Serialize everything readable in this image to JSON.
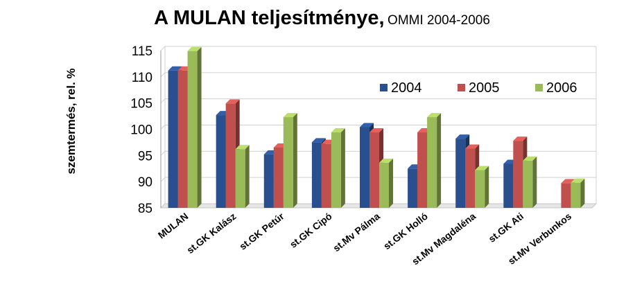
{
  "title": "A MULAN teljesítménye,",
  "subtitle": "OMMI 2004-2006",
  "colors": {
    "2004": "#2a4f8e",
    "2005": "#c0504d",
    "2006": "#9bbb59",
    "grid": "#d0d0d0",
    "floor": "#c8c8c8"
  },
  "chart_data": {
    "type": "bar",
    "title": "A MULAN teljesítménye, OMMI 2004-2006",
    "xlabel": "",
    "ylabel": "szemtermés, rel. %",
    "ylim": [
      85,
      115
    ],
    "yticks": [
      85,
      90,
      95,
      100,
      105,
      110,
      115
    ],
    "grid": true,
    "legend_position": "top-right",
    "categories": [
      "MULAN",
      "st.GK Kalász",
      "st.GK Petúr",
      "st.GK Cipó",
      "st.Mv Pálma",
      "st.GK Holló",
      "st.Mv Magdaléna",
      "st.GK Ati",
      "st.Mv Verbunkos"
    ],
    "series": [
      {
        "name": "2004",
        "values": [
          111.2,
          102.7,
          95.2,
          97.5,
          100.4,
          92.5,
          98.2,
          93.4,
          null
        ]
      },
      {
        "name": "2005",
        "values": [
          111.2,
          104.9,
          96.5,
          97.2,
          99.4,
          99.4,
          96.3,
          97.8,
          89.7
        ]
      },
      {
        "name": "2006",
        "values": [
          114.9,
          96.2,
          102.3,
          99.4,
          93.6,
          102.3,
          92.2,
          94.0,
          89.8
        ]
      }
    ]
  }
}
